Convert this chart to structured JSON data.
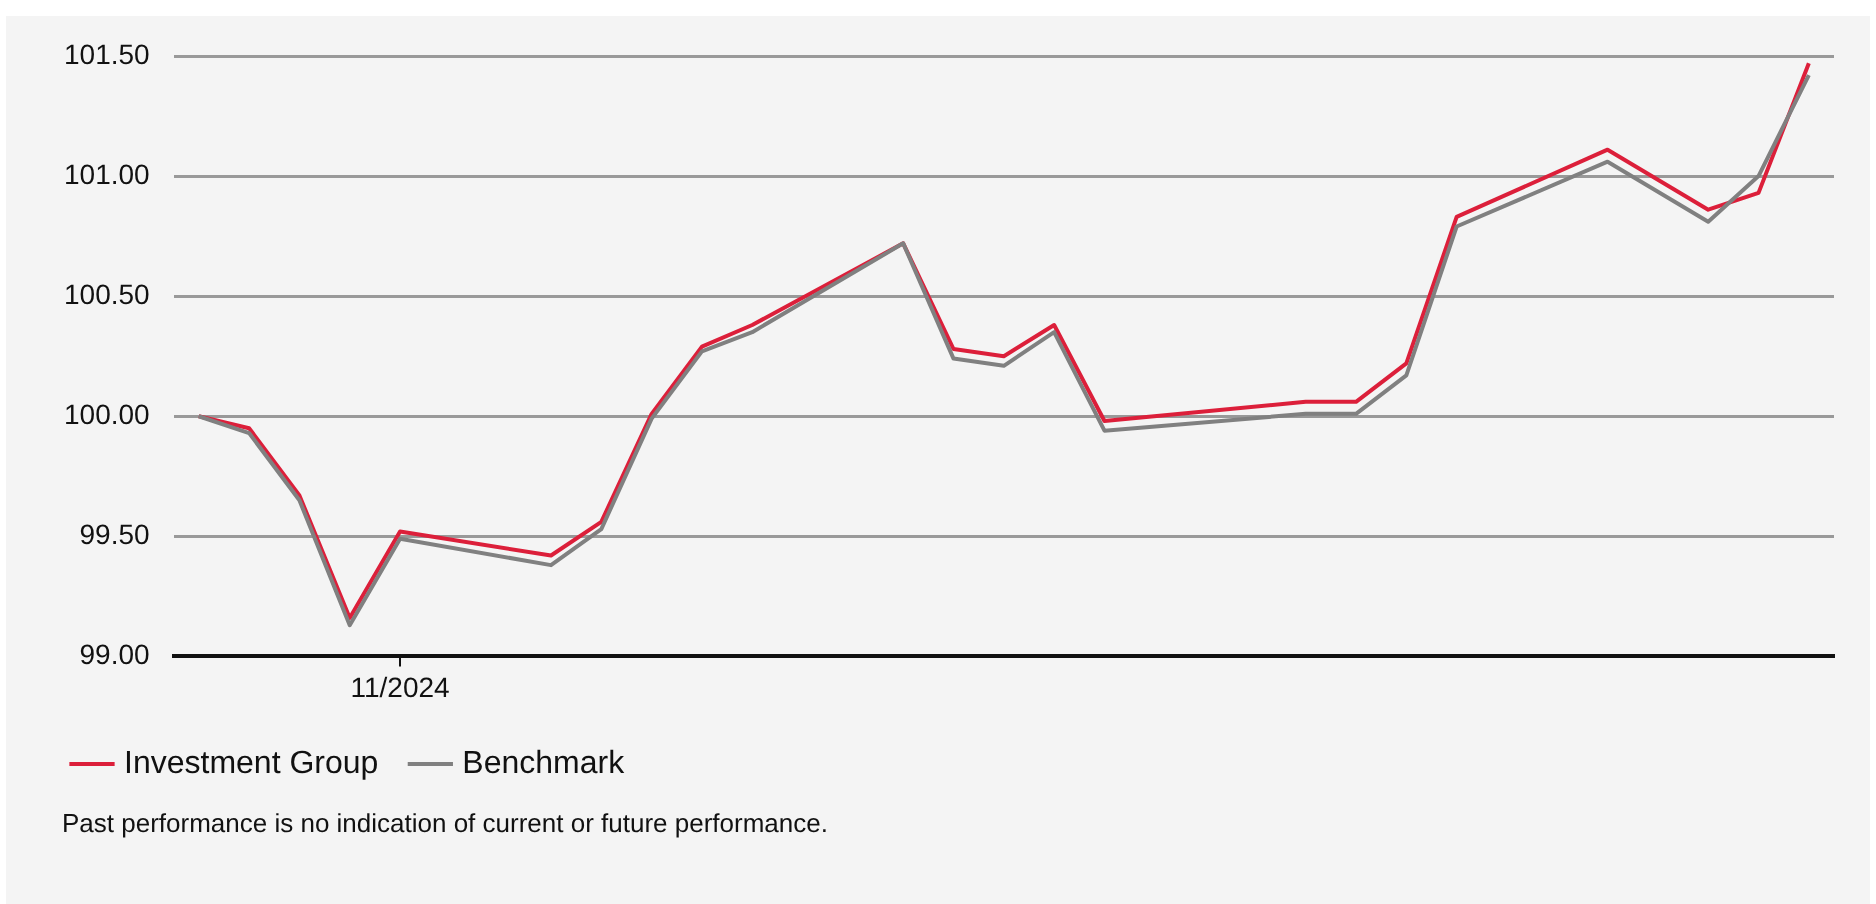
{
  "chart_data": {
    "type": "line",
    "categories": [
      null,
      null,
      null,
      null,
      "11/2024",
      null,
      null,
      null,
      null,
      null,
      null,
      null,
      null,
      null,
      null,
      null,
      null,
      null,
      null,
      null,
      null,
      null,
      null,
      null,
      null,
      null,
      null,
      null,
      null,
      null,
      null,
      null,
      null
    ],
    "series": [
      {
        "name": "Investment Group",
        "color": "#dc1f3a",
        "values": [
          100.0,
          99.95,
          99.67,
          99.16,
          99.52,
          null,
          null,
          99.42,
          99.56,
          100.01,
          100.29,
          100.38,
          null,
          null,
          100.72,
          100.28,
          100.25,
          100.38,
          99.98,
          null,
          null,
          null,
          100.06,
          100.06,
          100.22,
          100.83,
          null,
          null,
          101.11,
          null,
          100.86,
          100.93,
          101.47
        ]
      },
      {
        "name": "Benchmark",
        "color": "#808080",
        "values": [
          100.0,
          99.93,
          99.65,
          99.13,
          99.49,
          null,
          null,
          99.38,
          99.53,
          99.99,
          100.27,
          100.35,
          null,
          null,
          100.72,
          100.24,
          100.21,
          100.35,
          99.94,
          null,
          null,
          null,
          100.01,
          100.01,
          100.17,
          100.79,
          null,
          null,
          101.06,
          null,
          100.81,
          101.0,
          101.42
        ]
      }
    ],
    "ylim": [
      99,
      101.5
    ],
    "yticks": [
      {
        "value": 99,
        "label": "99.00"
      },
      {
        "value": 99.5,
        "label": "99.50"
      },
      {
        "value": 100,
        "label": "100.00"
      },
      {
        "value": 100.5,
        "label": "100.50"
      },
      {
        "value": 101,
        "label": "101.00"
      },
      {
        "value": 101.5,
        "label": "101.50"
      }
    ],
    "grid": "y",
    "legend": "bottom left",
    "marker": "none",
    "line_style": "solid",
    "annotations": [
      "Past performance is no indication of current or future performance."
    ]
  }
}
